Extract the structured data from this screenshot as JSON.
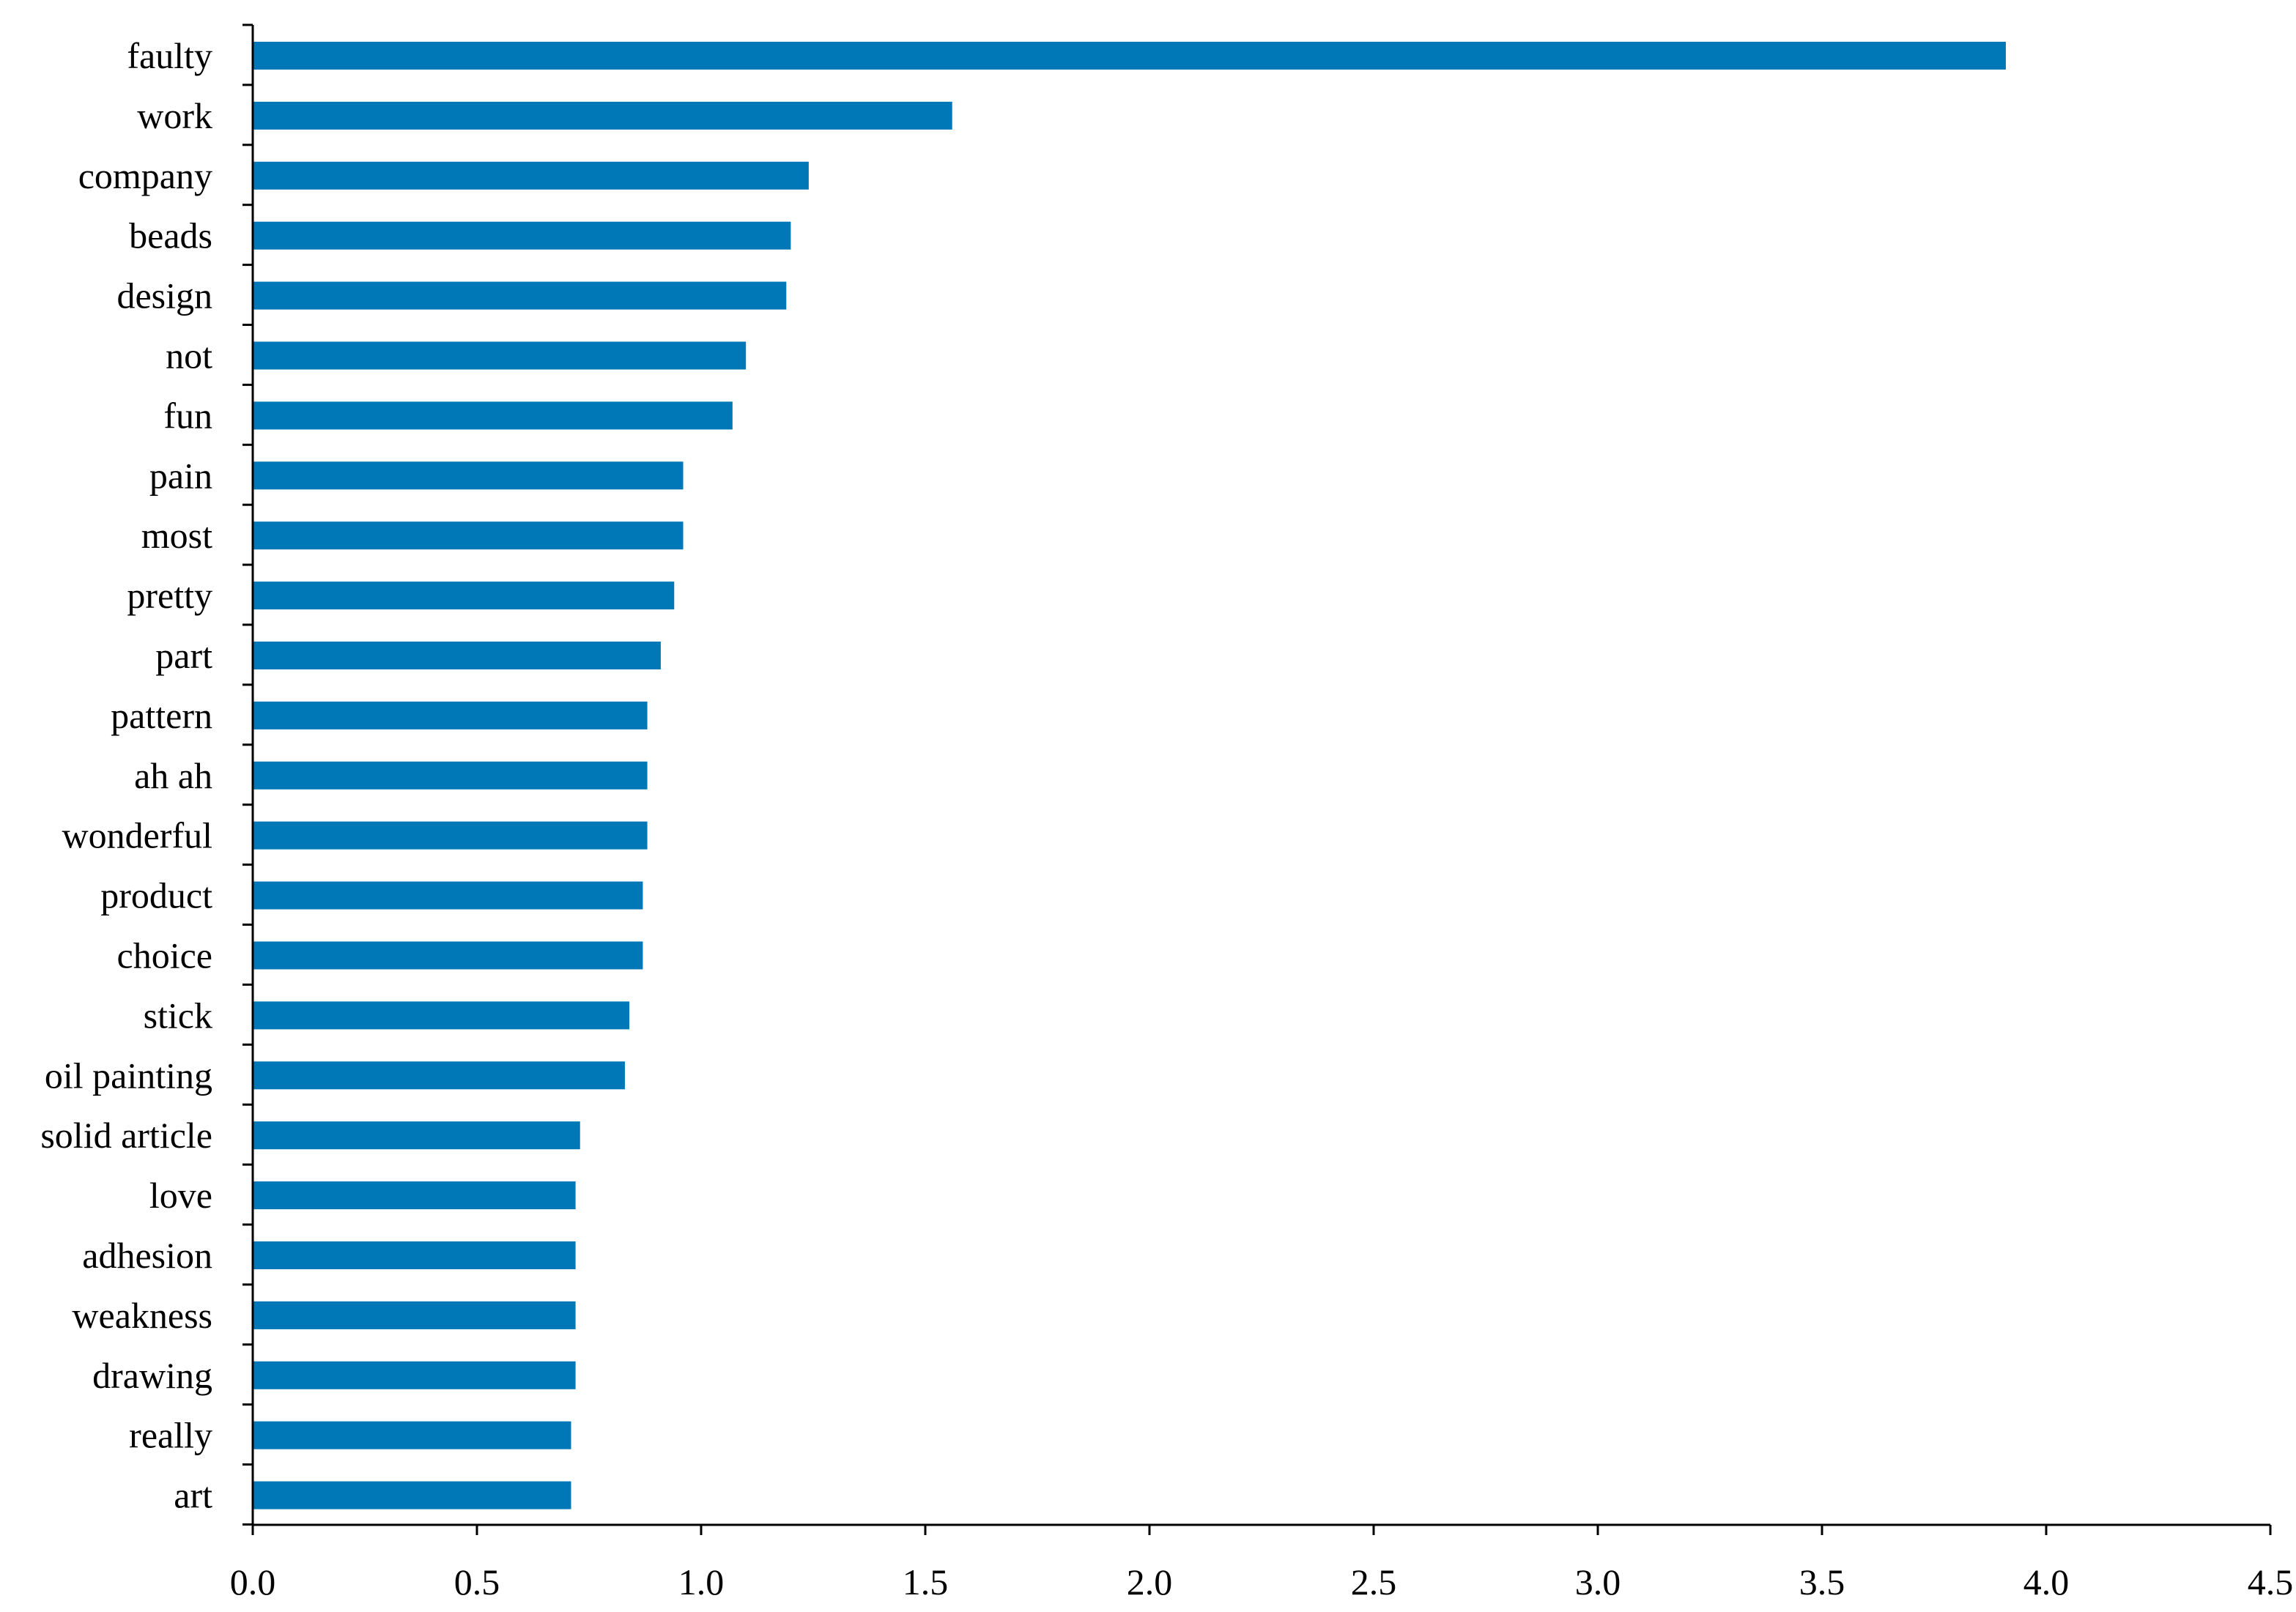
{
  "chart_data": {
    "type": "bar",
    "orientation": "horizontal",
    "title": "",
    "xlabel": "",
    "ylabel": "",
    "categories": [
      "faulty",
      "work",
      "company",
      "beads",
      "design",
      "not",
      "fun",
      "pain",
      "most",
      "pretty",
      "part",
      "pattern",
      "ah ah",
      "wonderful",
      "product",
      "choice",
      "stick",
      "oil painting",
      "solid article",
      "love",
      "adhesion",
      "weakness",
      "drawing",
      "really",
      "art"
    ],
    "values": [
      3.91,
      1.56,
      1.24,
      1.2,
      1.19,
      1.1,
      1.07,
      0.96,
      0.96,
      0.94,
      0.91,
      0.88,
      0.88,
      0.88,
      0.87,
      0.87,
      0.84,
      0.83,
      0.73,
      0.72,
      0.72,
      0.72,
      0.72,
      0.71,
      0.71
    ],
    "xlim": [
      0,
      4.5
    ],
    "xticks": [
      "0.0",
      "0.5",
      "1.0",
      "1.5",
      "2.0",
      "2.5",
      "3.0",
      "3.5",
      "4.0",
      "4.5"
    ],
    "grid": false,
    "legend": "none",
    "bar_color": "#0077b6"
  }
}
